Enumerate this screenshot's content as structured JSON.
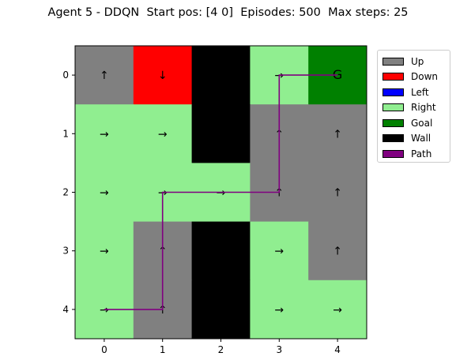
{
  "title": "Agent 5 - DDQN  Start pos: [4 0]  Episodes: 500  Max steps: 25",
  "chart_data": {
    "type": "heatmap",
    "grid_size": 5,
    "x_ticks": [
      "0",
      "1",
      "2",
      "3",
      "4"
    ],
    "y_ticks": [
      "0",
      "1",
      "2",
      "3",
      "4"
    ],
    "xlabel": "",
    "ylabel": "",
    "cells": [
      [
        "Up",
        "Down",
        "Wall",
        "Right",
        "Goal"
      ],
      [
        "Right",
        "Right",
        "Wall",
        "Up",
        "Up"
      ],
      [
        "Right",
        "Right",
        "Right",
        "Up",
        "Up"
      ],
      [
        "Right",
        "Up",
        "Wall",
        "Right",
        "Up"
      ],
      [
        "Right",
        "Up",
        "Wall",
        "Right",
        "Right"
      ]
    ],
    "cell_symbols": [
      [
        "↑",
        "↓",
        "",
        "→",
        "G"
      ],
      [
        "→",
        "→",
        "",
        "↑",
        "↑"
      ],
      [
        "→",
        "→",
        "→",
        "↑",
        "↑"
      ],
      [
        "→",
        "↑",
        "",
        "→",
        "↑"
      ],
      [
        "→",
        "↑",
        "",
        "→",
        "→"
      ]
    ],
    "path": [
      [
        4,
        0
      ],
      [
        4,
        1
      ],
      [
        3,
        1
      ],
      [
        2,
        1
      ],
      [
        2,
        2
      ],
      [
        2,
        3
      ],
      [
        1,
        3
      ],
      [
        0,
        3
      ],
      [
        0,
        4
      ]
    ],
    "path_color": "#800080",
    "legend": [
      {
        "label": "Up",
        "color": "#808080"
      },
      {
        "label": "Down",
        "color": "#ff0000"
      },
      {
        "label": "Left",
        "color": "#0000ff"
      },
      {
        "label": "Right",
        "color": "#90ee90"
      },
      {
        "label": "Goal",
        "color": "#008000"
      },
      {
        "label": "Wall",
        "color": "#000000"
      },
      {
        "label": "Path",
        "color": "#800080"
      }
    ],
    "legend_position": "outside-right",
    "grid": false
  }
}
